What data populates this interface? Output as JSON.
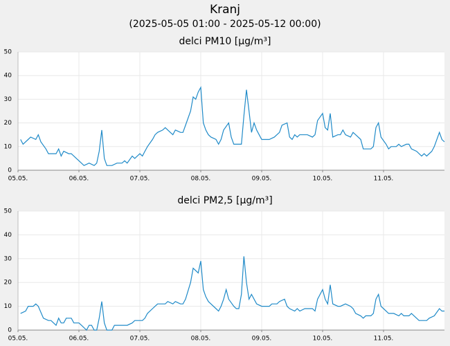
{
  "header": {
    "title": "Kranj",
    "subtitle": "(2025-05-05 01:00 - 2025-05-12 00:00)"
  },
  "chart_data": [
    {
      "type": "line",
      "title": "delci PM10 [µg/m³]",
      "color": "#1f8ac8",
      "grid": true,
      "xlim": [
        0,
        168
      ],
      "ylim": [
        0,
        50
      ],
      "yticks": [
        0,
        10,
        20,
        30,
        40,
        50
      ],
      "xticks": [
        {
          "value": 0,
          "label": "05.05."
        },
        {
          "value": 24,
          "label": "06.05."
        },
        {
          "value": 48,
          "label": "07.05."
        },
        {
          "value": 72,
          "label": "08.05."
        },
        {
          "value": 96,
          "label": "09.05."
        },
        {
          "value": 120,
          "label": "10.05."
        },
        {
          "value": 144,
          "label": "11.05."
        }
      ],
      "x": [
        1,
        2,
        4,
        5,
        7,
        8,
        9,
        11,
        12,
        15,
        16,
        17,
        18,
        20,
        21,
        23,
        24,
        26,
        28,
        30,
        31,
        32,
        33,
        34,
        35,
        37,
        39,
        41,
        42,
        43,
        45,
        46,
        48,
        49,
        50,
        51,
        53,
        54,
        55,
        57,
        58,
        60,
        61,
        62,
        64,
        65,
        66,
        68,
        69,
        70,
        71,
        72,
        73,
        74,
        75,
        76,
        78,
        79,
        80,
        81,
        83,
        84,
        85,
        87,
        88,
        89,
        90,
        91,
        92,
        93,
        94,
        95,
        96,
        99,
        101,
        102,
        103,
        104,
        106,
        107,
        108,
        109,
        110,
        111,
        114,
        116,
        117,
        118,
        120,
        121,
        122,
        123,
        124,
        126,
        127,
        128,
        129,
        131,
        132,
        133,
        135,
        136,
        139,
        140,
        141,
        142,
        143,
        145,
        146,
        147,
        149,
        150,
        151,
        153,
        154,
        155,
        157,
        159,
        160,
        161,
        163,
        164,
        166,
        167,
        168
      ],
      "values": [
        13,
        11,
        13,
        14,
        13,
        15,
        12,
        9,
        7,
        7,
        9,
        6,
        8,
        7,
        7,
        5,
        4,
        2,
        3,
        2,
        3,
        8,
        17,
        5,
        2,
        2,
        3,
        3,
        4,
        3,
        6,
        5,
        7,
        6,
        8,
        10,
        13,
        15,
        16,
        17,
        18,
        16,
        15,
        17,
        16,
        16,
        19,
        25,
        31,
        30,
        33,
        35,
        20,
        17,
        15,
        14,
        13,
        11,
        13,
        17,
        20,
        14,
        11,
        11,
        11,
        23,
        34,
        25,
        16,
        20,
        17,
        15,
        13,
        13,
        14,
        15,
        16,
        19,
        20,
        14,
        13,
        15,
        14,
        15,
        15,
        14,
        15,
        21,
        24,
        18,
        17,
        24,
        14,
        15,
        15,
        17,
        15,
        14,
        16,
        15,
        13,
        9,
        9,
        10,
        18,
        20,
        14,
        11,
        9,
        10,
        10,
        11,
        10,
        11,
        11,
        9,
        8,
        6,
        7,
        6,
        8,
        10,
        16,
        13,
        12
      ]
    },
    {
      "type": "line",
      "title": "delci PM2,5 [µg/m³]",
      "color": "#1f8ac8",
      "grid": true,
      "xlim": [
        0,
        168
      ],
      "ylim": [
        0,
        50
      ],
      "yticks": [
        0,
        10,
        20,
        30,
        40,
        50
      ],
      "xticks": [
        {
          "value": 0,
          "label": "05.05."
        },
        {
          "value": 24,
          "label": "06.05."
        },
        {
          "value": 48,
          "label": "07.05."
        },
        {
          "value": 72,
          "label": "08.05."
        },
        {
          "value": 96,
          "label": "09.05."
        },
        {
          "value": 120,
          "label": "10.05."
        },
        {
          "value": 144,
          "label": "11.05."
        }
      ],
      "x": [
        1,
        3,
        4,
        6,
        7,
        8,
        10,
        12,
        13,
        15,
        16,
        17,
        18,
        19,
        20,
        21,
        22,
        24,
        25,
        27,
        28,
        29,
        30,
        31,
        32,
        33,
        34,
        35,
        37,
        38,
        42,
        43,
        45,
        46,
        49,
        50,
        51,
        53,
        54,
        55,
        58,
        59,
        61,
        62,
        64,
        65,
        66,
        68,
        69,
        70,
        71,
        72,
        73,
        74,
        75,
        76,
        78,
        79,
        80,
        81,
        82,
        83,
        85,
        86,
        87,
        88,
        89,
        90,
        91,
        92,
        93,
        94,
        96,
        99,
        100,
        102,
        103,
        105,
        106,
        107,
        109,
        110,
        111,
        113,
        116,
        117,
        118,
        120,
        121,
        122,
        123,
        124,
        126,
        127,
        129,
        131,
        132,
        133,
        135,
        136,
        137,
        139,
        140,
        141,
        142,
        143,
        144,
        146,
        148,
        150,
        151,
        152,
        154,
        155,
        157,
        158,
        161,
        162,
        164,
        166,
        167,
        168
      ],
      "values": [
        7,
        8,
        10,
        10,
        11,
        10,
        5,
        4,
        4,
        2,
        5,
        3,
        3,
        5,
        5,
        5,
        3,
        3,
        2,
        0,
        2,
        2,
        0,
        0,
        5,
        12,
        3,
        0,
        0,
        2,
        2,
        2,
        3,
        4,
        4,
        5,
        7,
        9,
        10,
        11,
        11,
        12,
        11,
        12,
        11,
        11,
        13,
        20,
        26,
        25,
        24,
        29,
        17,
        14,
        12,
        11,
        9,
        8,
        10,
        13,
        17,
        13,
        10,
        9,
        9,
        15,
        31,
        20,
        13,
        15,
        13,
        11,
        10,
        10,
        11,
        11,
        12,
        13,
        10,
        9,
        8,
        9,
        8,
        9,
        9,
        8,
        13,
        17,
        13,
        11,
        19,
        11,
        10,
        10,
        11,
        10,
        9,
        7,
        6,
        5,
        6,
        6,
        7,
        13,
        15,
        10,
        9,
        7,
        7,
        6,
        7,
        6,
        6,
        7,
        5,
        4,
        4,
        5,
        6,
        9,
        8,
        8
      ]
    }
  ]
}
